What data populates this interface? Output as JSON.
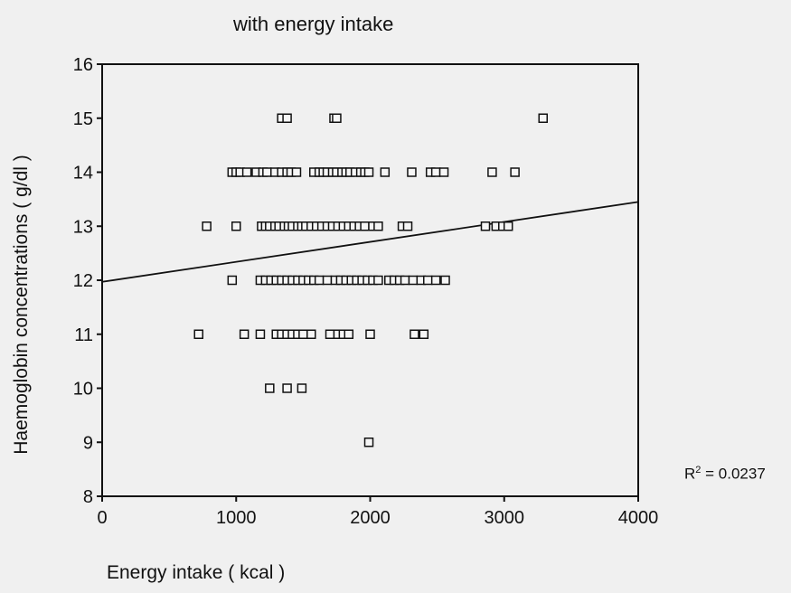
{
  "chart_data": {
    "type": "scatter",
    "title": "with energy intake",
    "xlabel": "Energy intake ( kcal )",
    "ylabel": "Haemoglobin concentrations ( g/dl )",
    "xlim": [
      0,
      4000
    ],
    "ylim": [
      8,
      16
    ],
    "xticks": [
      "0",
      "1000",
      "2000",
      "3000",
      "4000"
    ],
    "yticks": [
      "8",
      "9",
      "10",
      "11",
      "12",
      "13",
      "14",
      "15",
      "16"
    ],
    "grid": false,
    "marker": "open-square",
    "fit_line": {
      "intercept": 11.97,
      "slope": 0.00037,
      "x_range": [
        0,
        4000
      ]
    },
    "annotation": {
      "text_prefix": "R",
      "superscript": "2",
      "text_suffix": " = 0.0237"
    },
    "points": [
      [
        1340,
        15
      ],
      [
        1380,
        15
      ],
      [
        1730,
        15
      ],
      [
        1750,
        15
      ],
      [
        3290,
        15
      ],
      [
        970,
        14
      ],
      [
        1000,
        14
      ],
      [
        1030,
        14
      ],
      [
        1080,
        14
      ],
      [
        1150,
        14
      ],
      [
        1200,
        14
      ],
      [
        1230,
        14
      ],
      [
        1290,
        14
      ],
      [
        1340,
        14
      ],
      [
        1380,
        14
      ],
      [
        1410,
        14
      ],
      [
        1450,
        14
      ],
      [
        1580,
        14
      ],
      [
        1620,
        14
      ],
      [
        1650,
        14
      ],
      [
        1680,
        14
      ],
      [
        1720,
        14
      ],
      [
        1750,
        14
      ],
      [
        1790,
        14
      ],
      [
        1820,
        14
      ],
      [
        1850,
        14
      ],
      [
        1890,
        14
      ],
      [
        1930,
        14
      ],
      [
        1960,
        14
      ],
      [
        1990,
        14
      ],
      [
        2110,
        14
      ],
      [
        2310,
        14
      ],
      [
        2450,
        14
      ],
      [
        2490,
        14
      ],
      [
        2550,
        14
      ],
      [
        2910,
        14
      ],
      [
        3080,
        14
      ],
      [
        780,
        13
      ],
      [
        1000,
        13
      ],
      [
        1190,
        13
      ],
      [
        1220,
        13
      ],
      [
        1250,
        13
      ],
      [
        1290,
        13
      ],
      [
        1320,
        13
      ],
      [
        1360,
        13
      ],
      [
        1390,
        13
      ],
      [
        1420,
        13
      ],
      [
        1460,
        13
      ],
      [
        1490,
        13
      ],
      [
        1520,
        13
      ],
      [
        1560,
        13
      ],
      [
        1600,
        13
      ],
      [
        1640,
        13
      ],
      [
        1680,
        13
      ],
      [
        1720,
        13
      ],
      [
        1760,
        13
      ],
      [
        1800,
        13
      ],
      [
        1840,
        13
      ],
      [
        1880,
        13
      ],
      [
        1920,
        13
      ],
      [
        1960,
        13
      ],
      [
        2020,
        13
      ],
      [
        2060,
        13
      ],
      [
        2240,
        13
      ],
      [
        2280,
        13
      ],
      [
        2860,
        13
      ],
      [
        2940,
        13
      ],
      [
        2990,
        13
      ],
      [
        3030,
        13
      ],
      [
        970,
        12
      ],
      [
        1180,
        12
      ],
      [
        1220,
        12
      ],
      [
        1260,
        12
      ],
      [
        1300,
        12
      ],
      [
        1340,
        12
      ],
      [
        1380,
        12
      ],
      [
        1420,
        12
      ],
      [
        1460,
        12
      ],
      [
        1500,
        12
      ],
      [
        1540,
        12
      ],
      [
        1580,
        12
      ],
      [
        1620,
        12
      ],
      [
        1680,
        12
      ],
      [
        1740,
        12
      ],
      [
        1780,
        12
      ],
      [
        1820,
        12
      ],
      [
        1860,
        12
      ],
      [
        1900,
        12
      ],
      [
        1940,
        12
      ],
      [
        1980,
        12
      ],
      [
        2020,
        12
      ],
      [
        2060,
        12
      ],
      [
        2140,
        12
      ],
      [
        2180,
        12
      ],
      [
        2220,
        12
      ],
      [
        2260,
        12
      ],
      [
        2320,
        12
      ],
      [
        2380,
        12
      ],
      [
        2430,
        12
      ],
      [
        2490,
        12
      ],
      [
        2560,
        12
      ],
      [
        720,
        11
      ],
      [
        1060,
        11
      ],
      [
        1180,
        11
      ],
      [
        1300,
        11
      ],
      [
        1340,
        11
      ],
      [
        1380,
        11
      ],
      [
        1420,
        11
      ],
      [
        1460,
        11
      ],
      [
        1500,
        11
      ],
      [
        1560,
        11
      ],
      [
        1700,
        11
      ],
      [
        1760,
        11
      ],
      [
        1800,
        11
      ],
      [
        1840,
        11
      ],
      [
        2000,
        11
      ],
      [
        2330,
        11
      ],
      [
        2400,
        11
      ],
      [
        1250,
        10
      ],
      [
        1380,
        10
      ],
      [
        1490,
        10
      ],
      [
        1990,
        9
      ]
    ]
  }
}
